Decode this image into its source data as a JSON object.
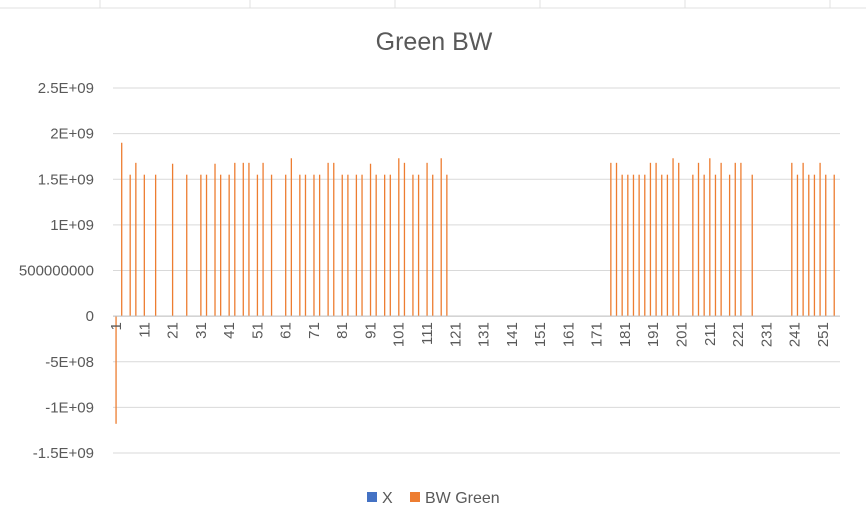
{
  "chart_data": {
    "type": "bar",
    "title": "Green BW",
    "xlabel": "",
    "ylabel": "",
    "ylim": [
      -1500000000,
      2500000000
    ],
    "y_tick_step": 500000000,
    "y_tick_labels": [
      "2.5E+09",
      "2E+09",
      "1.5E+09",
      "1E+09",
      "500000000",
      "0",
      "-5E+08",
      "-1E+09",
      "-1.5E+09"
    ],
    "x_range": [
      1,
      256
    ],
    "x_tick_labels": [
      "1",
      "11",
      "21",
      "31",
      "41",
      "51",
      "61",
      "71",
      "81",
      "91",
      "101",
      "111",
      "121",
      "131",
      "141",
      "151",
      "161",
      "171",
      "181",
      "191",
      "201",
      "211",
      "221",
      "231",
      "241",
      "251"
    ],
    "grid": "horizontal",
    "legend_position": "bottom",
    "colors": {
      "X": "#4472c4",
      "BW Green": "#ed7d31",
      "grid": "#d9d9d9",
      "text": "#595959"
    },
    "series": [
      {
        "name": "X",
        "x": [],
        "values": []
      },
      {
        "name": "BW Green",
        "x": [
          1,
          3,
          6,
          8,
          11,
          15,
          21,
          26,
          31,
          33,
          36,
          38,
          41,
          43,
          46,
          48,
          51,
          53,
          56,
          61,
          63,
          66,
          68,
          71,
          73,
          76,
          78,
          81,
          83,
          86,
          88,
          91,
          93,
          96,
          98,
          101,
          103,
          106,
          108,
          111,
          113,
          116,
          118,
          176,
          178,
          180,
          182,
          184,
          186,
          188,
          190,
          192,
          194,
          196,
          198,
          200,
          205,
          207,
          209,
          211,
          213,
          215,
          218,
          220,
          222,
          226,
          240,
          242,
          244,
          246,
          248,
          250,
          252,
          255
        ],
        "values": [
          -1180000000,
          1900000000,
          1550000000,
          1680000000,
          1550000000,
          1550000000,
          1670000000,
          1550000000,
          1550000000,
          1550000000,
          1670000000,
          1550000000,
          1550000000,
          1680000000,
          1680000000,
          1680000000,
          1550000000,
          1680000000,
          1550000000,
          1550000000,
          1730000000,
          1550000000,
          1550000000,
          1550000000,
          1550000000,
          1680000000,
          1680000000,
          1550000000,
          1550000000,
          1550000000,
          1550000000,
          1670000000,
          1550000000,
          1550000000,
          1550000000,
          1730000000,
          1680000000,
          1550000000,
          1550000000,
          1680000000,
          1550000000,
          1730000000,
          1550000000,
          1680000000,
          1680000000,
          1550000000,
          1550000000,
          1550000000,
          1550000000,
          1550000000,
          1680000000,
          1680000000,
          1550000000,
          1550000000,
          1730000000,
          1680000000,
          1550000000,
          1680000000,
          1550000000,
          1730000000,
          1550000000,
          1680000000,
          1550000000,
          1680000000,
          1680000000,
          1550000000,
          1680000000,
          1550000000,
          1680000000,
          1550000000,
          1550000000,
          1680000000,
          1550000000,
          1550000000
        ]
      }
    ]
  }
}
